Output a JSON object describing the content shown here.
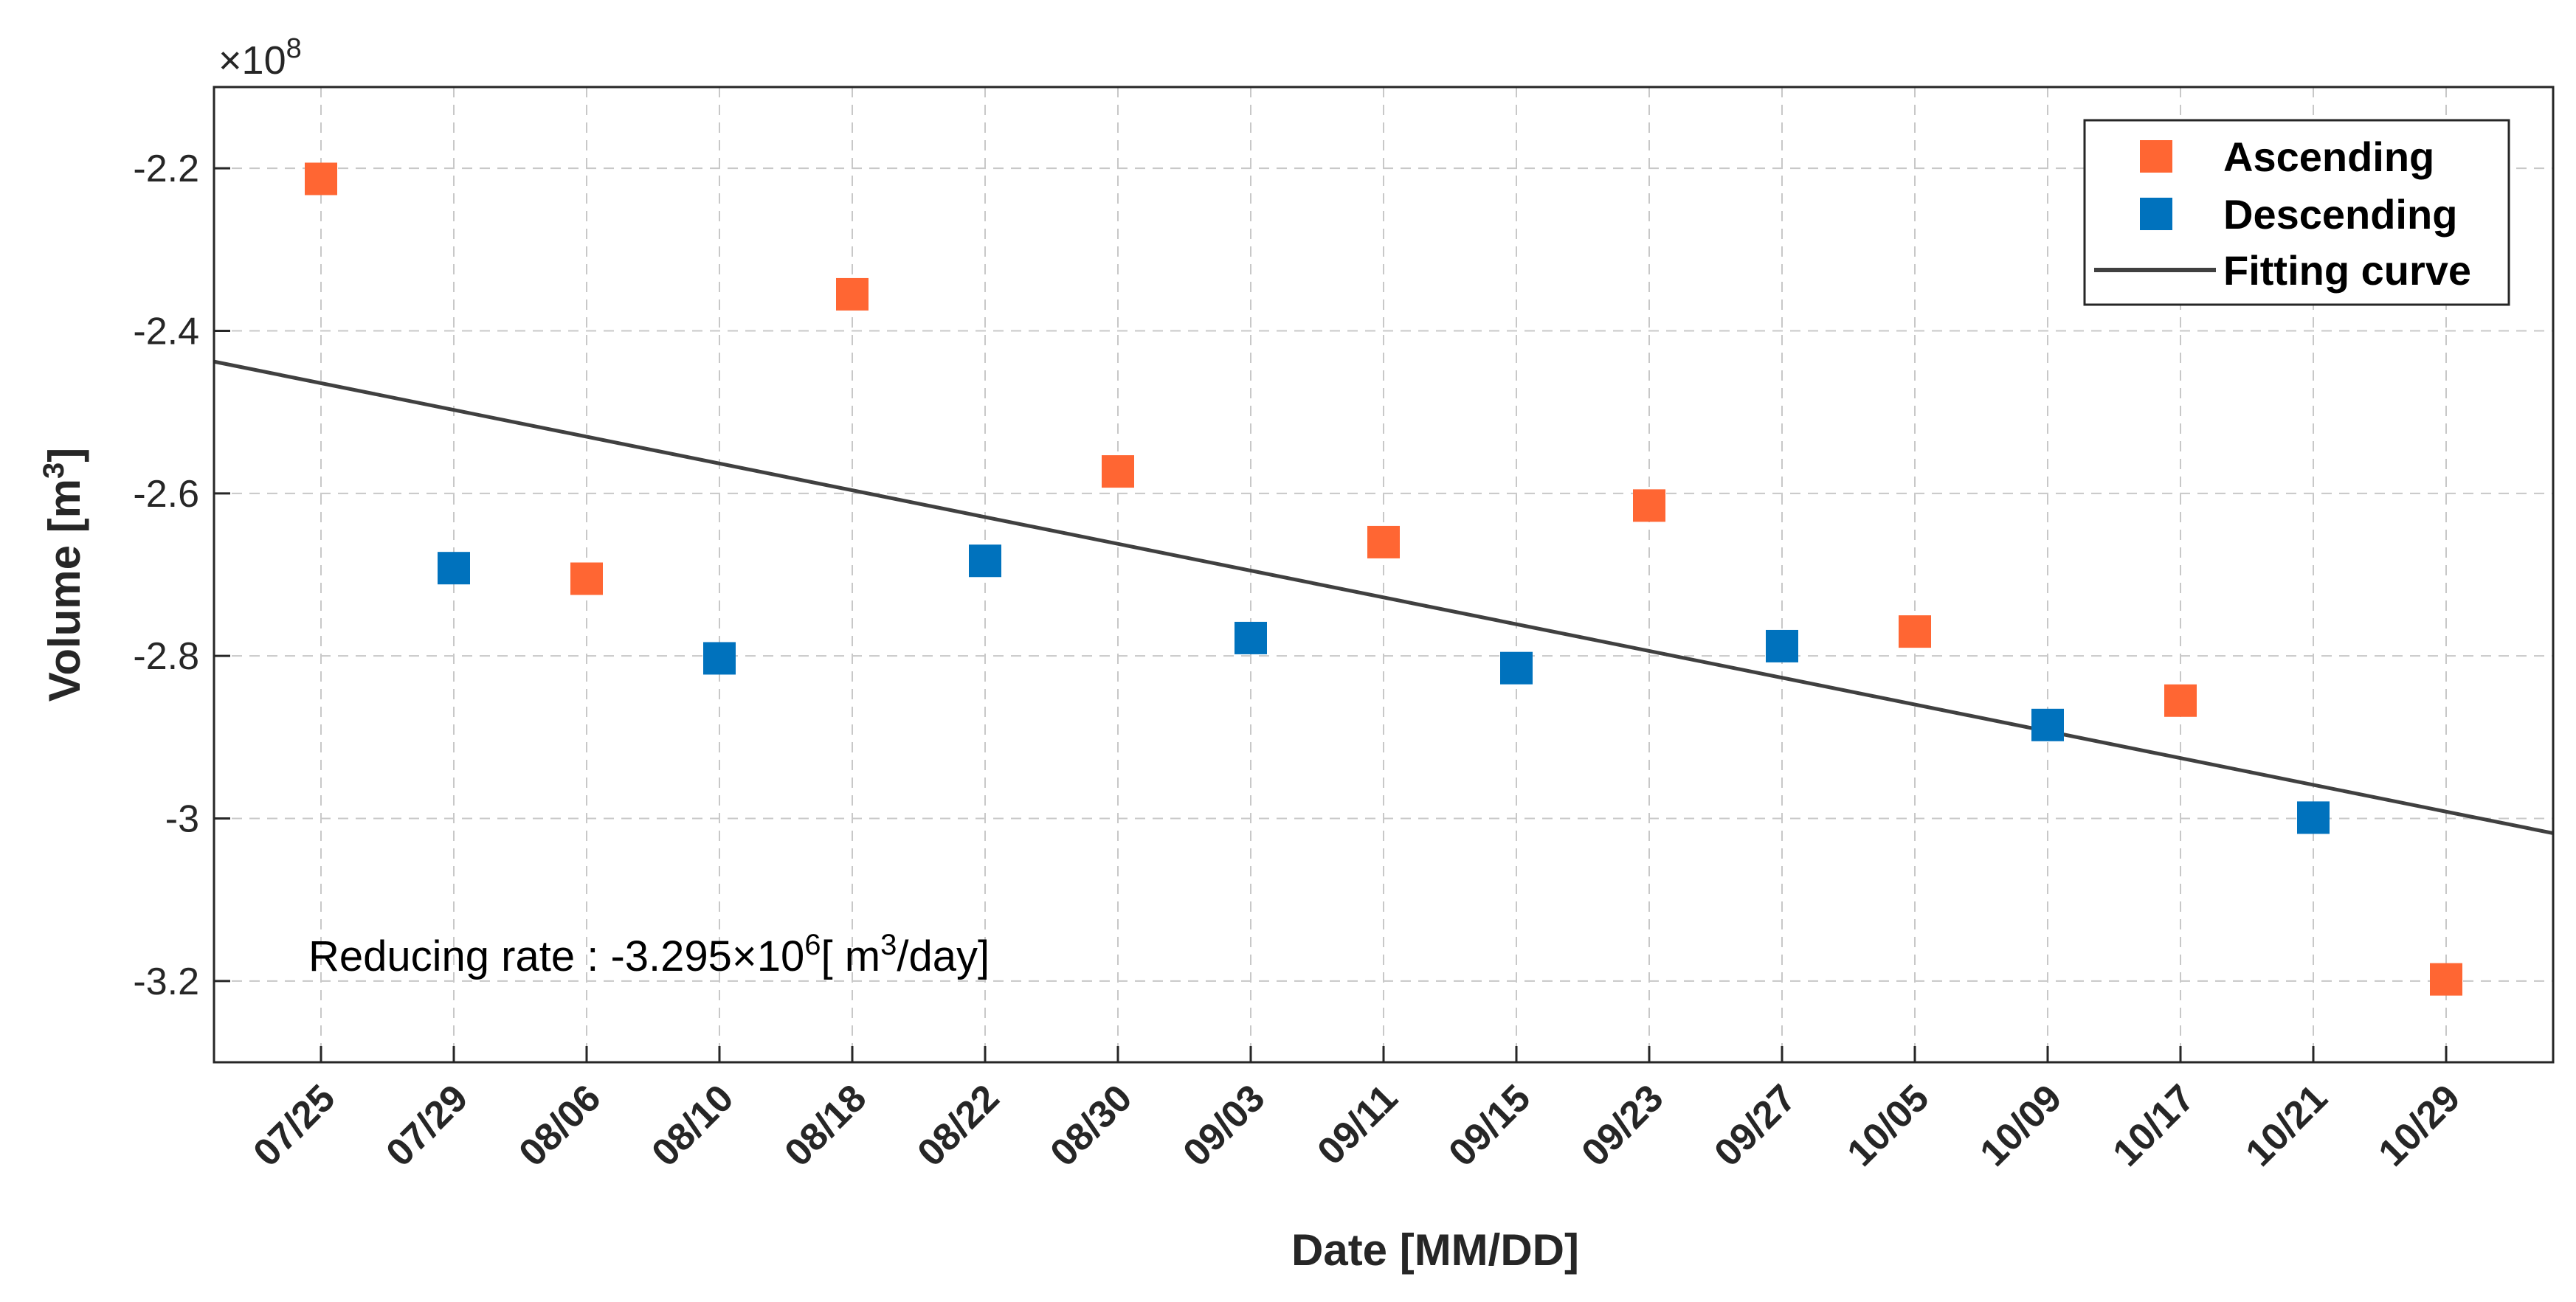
{
  "chart_data": {
    "type": "scatter",
    "xlabel": "Date [MM/DD]",
    "ylabel_text": "Volume [m",
    "ylabel_sup": "3",
    "ylabel_close": "]",
    "exponent_prefix": "×10",
    "exponent_power": "8",
    "categories": [
      "07/25",
      "07/29",
      "08/06",
      "08/10",
      "08/18",
      "08/22",
      "08/30",
      "09/03",
      "09/11",
      "09/15",
      "09/23",
      "09/27",
      "10/05",
      "10/09",
      "10/17",
      "10/21",
      "10/29"
    ],
    "ylim": [
      -3.3,
      -2.1
    ],
    "yticks": [
      -2.2,
      -2.4,
      -2.6,
      -2.8,
      -3,
      -3.2
    ],
    "ytick_labels": [
      "-2.2",
      "-2.4",
      "-2.6",
      "-2.8",
      "-3",
      "-3.2"
    ],
    "grid": true,
    "legend_position": "top-right",
    "series": [
      {
        "name": "Ascending",
        "color": "#FF6633",
        "marker": "square",
        "points": [
          {
            "x": "07/25",
            "y": -2.213
          },
          {
            "x": "08/06",
            "y": -2.705
          },
          {
            "x": "08/18",
            "y": -2.355
          },
          {
            "x": "08/30",
            "y": -2.573
          },
          {
            "x": "09/11",
            "y": -2.66
          },
          {
            "x": "09/23",
            "y": -2.615
          },
          {
            "x": "10/05",
            "y": -2.77
          },
          {
            "x": "10/17",
            "y": -2.855
          },
          {
            "x": "10/29",
            "y": -3.198
          }
        ]
      },
      {
        "name": "Descending",
        "color": "#0072BD",
        "marker": "square",
        "points": [
          {
            "x": "07/29",
            "y": -2.692
          },
          {
            "x": "08/10",
            "y": -2.803
          },
          {
            "x": "08/22",
            "y": -2.683
          },
          {
            "x": "09/03",
            "y": -2.778
          },
          {
            "x": "09/15",
            "y": -2.815
          },
          {
            "x": "09/27",
            "y": -2.788
          },
          {
            "x": "10/09",
            "y": -2.885
          },
          {
            "x": "10/21",
            "y": -2.999
          }
        ]
      }
    ],
    "fit_line": {
      "name": "Fitting curve",
      "color": "#404040",
      "start": {
        "x_index": -0.8,
        "y": -2.438
      },
      "end": {
        "x_index": 16.8,
        "y": -3.018
      }
    },
    "annotation": {
      "prefix": "Reducing rate : -3.295×10",
      "power": "6",
      "unit_open": "[ m",
      "unit_power": "3",
      "unit_close": "/day]"
    }
  }
}
